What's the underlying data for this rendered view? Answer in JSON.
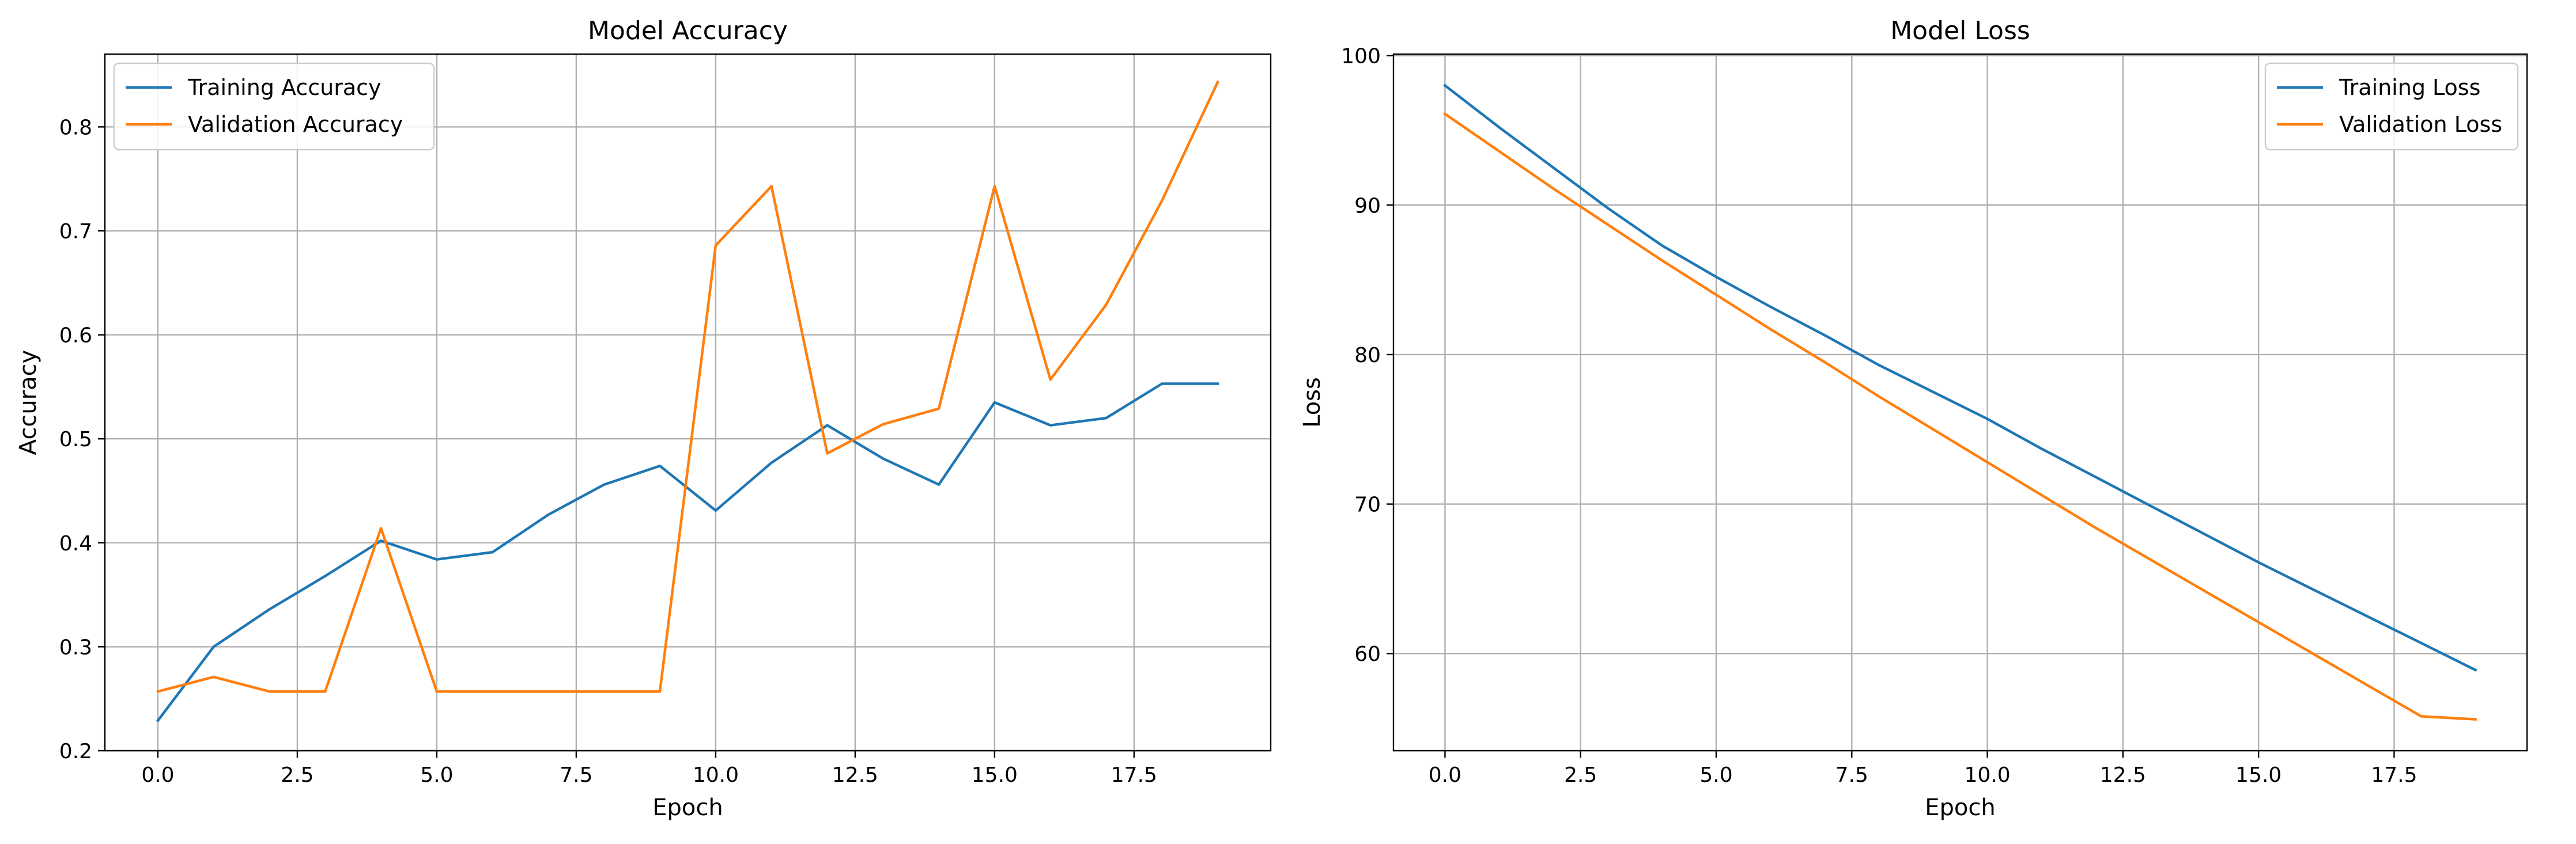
{
  "chart_data": [
    {
      "type": "line",
      "title": "Model Accuracy",
      "xlabel": "Epoch",
      "ylabel": "Accuracy",
      "xlim": [
        -0.95,
        19.95
      ],
      "ylim": [
        0.2,
        0.87
      ],
      "xticks": [
        0,
        2.5,
        5,
        7.5,
        10,
        12.5,
        15,
        17.5
      ],
      "xtick_labels": [
        "0.0",
        "2.5",
        "5.0",
        "7.5",
        "10.0",
        "12.5",
        "15.0",
        "17.5"
      ],
      "yticks": [
        0.2,
        0.3,
        0.4,
        0.5,
        0.6,
        0.7,
        0.8
      ],
      "ytick_labels": [
        "0.2",
        "0.3",
        "0.4",
        "0.5",
        "0.6",
        "0.7",
        "0.8"
      ],
      "grid": true,
      "legend_position": "top-left",
      "x": [
        0,
        1,
        2,
        3,
        4,
        5,
        6,
        7,
        8,
        9,
        10,
        11,
        12,
        13,
        14,
        15,
        16,
        17,
        18,
        19
      ],
      "series": [
        {
          "name": "Training Accuracy",
          "color": "#1f77b4",
          "values": [
            0.229,
            0.3,
            0.336,
            0.368,
            0.402,
            0.384,
            0.391,
            0.427,
            0.456,
            0.474,
            0.431,
            0.477,
            0.513,
            0.481,
            0.456,
            0.535,
            0.513,
            0.52,
            0.553,
            0.553
          ]
        },
        {
          "name": "Validation Accuracy",
          "color": "#ff7f0e",
          "values": [
            0.257,
            0.271,
            0.257,
            0.257,
            0.414,
            0.257,
            0.257,
            0.257,
            0.257,
            0.257,
            0.686,
            0.743,
            0.486,
            0.514,
            0.529,
            0.743,
            0.557,
            0.629,
            0.729,
            0.843
          ]
        }
      ]
    },
    {
      "type": "line",
      "title": "Model Loss",
      "xlabel": "Epoch",
      "ylabel": "Loss",
      "xlim": [
        -0.95,
        19.95
      ],
      "ylim": [
        53.5,
        100.1
      ],
      "xticks": [
        0,
        2.5,
        5,
        7.5,
        10,
        12.5,
        15,
        17.5
      ],
      "xtick_labels": [
        "0.0",
        "2.5",
        "5.0",
        "7.5",
        "10.0",
        "12.5",
        "15.0",
        "17.5"
      ],
      "yticks": [
        60,
        70,
        80,
        90,
        100
      ],
      "ytick_labels": [
        "60",
        "70",
        "80",
        "90",
        "100"
      ],
      "grid": true,
      "legend_position": "top-right",
      "x": [
        0,
        1,
        2,
        3,
        4,
        5,
        6,
        7,
        8,
        9,
        10,
        11,
        12,
        13,
        14,
        15,
        16,
        17,
        18,
        19
      ],
      "series": [
        {
          "name": "Training Loss",
          "color": "#1f77b4",
          "values": [
            98.0,
            95.2,
            92.5,
            89.8,
            87.3,
            85.2,
            83.2,
            81.3,
            79.3,
            77.5,
            75.7,
            73.7,
            71.8,
            69.9,
            68.0,
            66.1,
            64.3,
            62.5,
            60.7,
            58.9
          ]
        },
        {
          "name": "Validation Loss",
          "color": "#ff7f0e",
          "values": [
            96.1,
            93.6,
            91.1,
            88.7,
            86.3,
            84.0,
            81.7,
            79.5,
            77.2,
            75.0,
            72.8,
            70.6,
            68.4,
            66.3,
            64.2,
            62.1,
            60.0,
            57.9,
            55.8,
            55.6
          ]
        }
      ]
    }
  ]
}
